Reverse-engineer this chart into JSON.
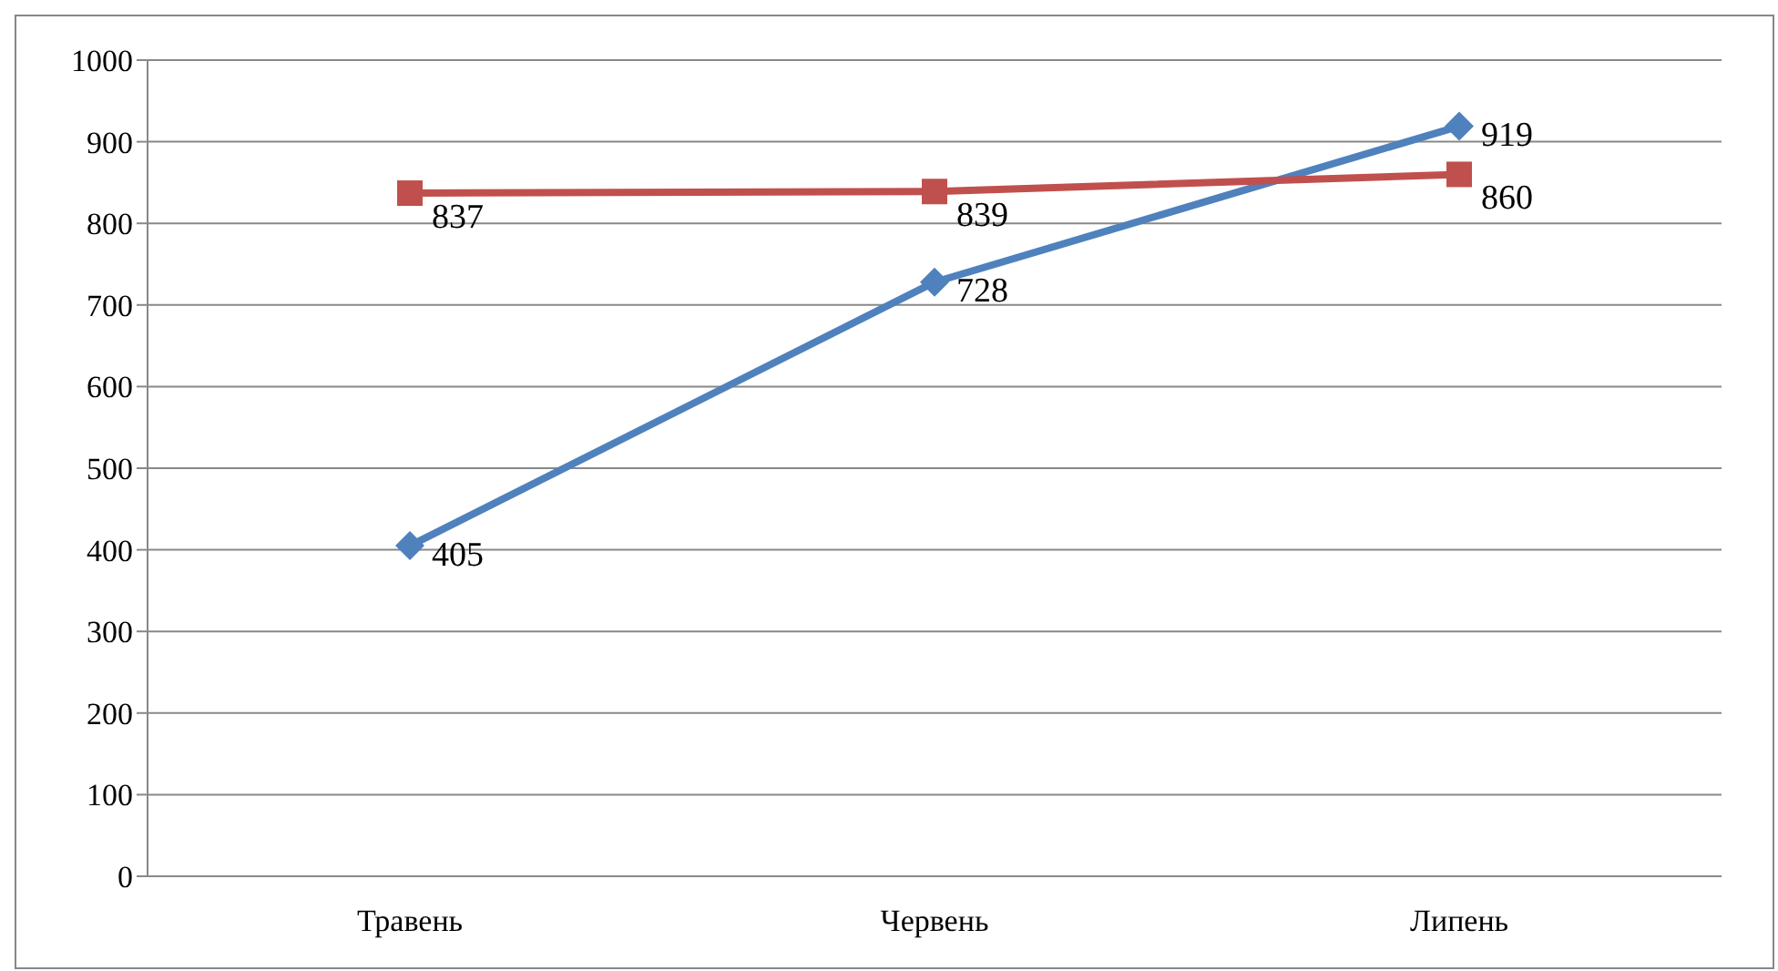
{
  "chart_data": {
    "type": "line",
    "categories": [
      "Травень",
      "Червень",
      "Липень"
    ],
    "series": [
      {
        "color": "#4f81bd",
        "values": [
          405,
          728,
          919
        ],
        "marker": "diamond"
      },
      {
        "color": "#c0504d",
        "values": [
          837,
          839,
          860
        ],
        "marker": "square"
      }
    ],
    "ylim": [
      0,
      1000
    ],
    "yticks": [
      0,
      100,
      200,
      300,
      400,
      500,
      600,
      700,
      800,
      900,
      1000
    ],
    "grid": "y",
    "data_labels": true
  }
}
